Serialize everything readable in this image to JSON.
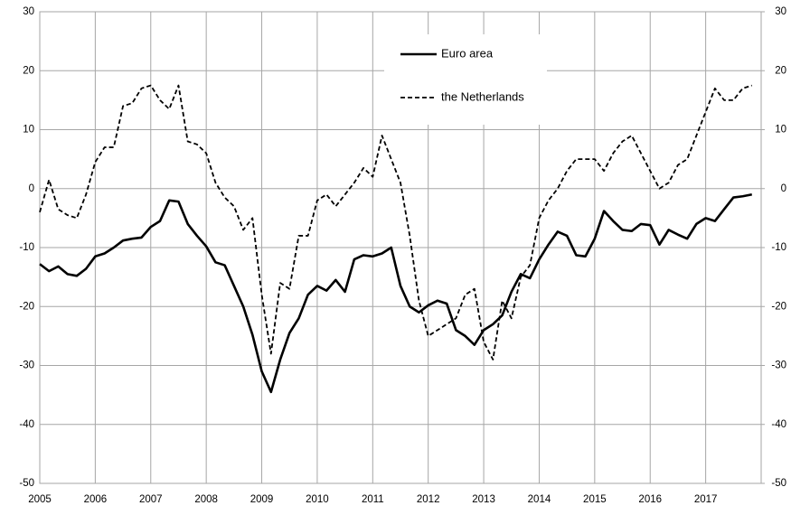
{
  "chart_data": {
    "type": "line",
    "x": [
      2005,
      2005.167,
      2005.333,
      2005.5,
      2005.667,
      2005.833,
      2006,
      2006.167,
      2006.333,
      2006.5,
      2006.667,
      2006.833,
      2007,
      2007.167,
      2007.333,
      2007.5,
      2007.667,
      2007.833,
      2008,
      2008.167,
      2008.333,
      2008.5,
      2008.667,
      2008.833,
      2009,
      2009.167,
      2009.333,
      2009.5,
      2009.667,
      2009.833,
      2010,
      2010.167,
      2010.333,
      2010.5,
      2010.667,
      2010.833,
      2011,
      2011.167,
      2011.333,
      2011.5,
      2011.667,
      2011.833,
      2012,
      2012.167,
      2012.333,
      2012.5,
      2012.667,
      2012.833,
      2013,
      2013.167,
      2013.333,
      2013.5,
      2013.667,
      2013.833,
      2014,
      2014.167,
      2014.333,
      2014.5,
      2014.667,
      2014.833,
      2015,
      2015.167,
      2015.333,
      2015.5,
      2015.667,
      2015.833,
      2016,
      2016.167,
      2016.333,
      2016.5,
      2016.667,
      2016.833,
      2017,
      2017.167,
      2017.333,
      2017.5,
      2017.667,
      2017.833
    ],
    "series": [
      {
        "name": "Euro area",
        "color": "#000000",
        "dash": false,
        "values": [
          -12.8,
          -14,
          -13.2,
          -14.5,
          -14.8,
          -13.6,
          -11.5,
          -11,
          -10,
          -8.8,
          -8.5,
          -8.3,
          -6.5,
          -5.5,
          -2,
          -2.2,
          -6,
          -8,
          -9.8,
          -12.5,
          -13,
          -16.5,
          -20,
          -24.8,
          -31,
          -34.5,
          -29,
          -24.5,
          -22,
          -18,
          -16.5,
          -17.3,
          -15.5,
          -17.5,
          -12,
          -11.3,
          -11.5,
          -11,
          -10,
          -16.5,
          -20,
          -21,
          -19.8,
          -19,
          -19.5,
          -24,
          -25,
          -26.5,
          -24,
          -23,
          -21.5,
          -17.5,
          -14.5,
          -15.2,
          -12,
          -9.5,
          -7.3,
          -8,
          -11.3,
          -11.5,
          -8.5,
          -3.8,
          -5.5,
          -7,
          -7.2,
          -6,
          -6.2,
          -9.5,
          -7,
          -7.8,
          -8.5,
          -6,
          -5,
          -5.5,
          -3.5,
          -1.5,
          -1.3,
          -1
        ]
      },
      {
        "name": "the Netherlands",
        "color": "#000000",
        "dash": true,
        "values": [
          -4,
          1.5,
          -3.5,
          -4.5,
          -5,
          -1,
          4.5,
          7,
          7,
          14,
          14.5,
          17,
          17.5,
          15,
          13.5,
          17.5,
          8,
          7.5,
          6,
          1,
          -1.5,
          -3,
          -7,
          -5,
          -18,
          -28,
          -16,
          -17,
          -8,
          -8,
          -2,
          -1,
          -3,
          -1,
          1,
          3.5,
          2,
          9,
          5,
          1,
          -8,
          -19,
          -25,
          -24,
          -23,
          -22,
          -18,
          -17,
          -26,
          -29,
          -19,
          -22,
          -15,
          -13,
          -5,
          -2,
          0,
          3,
          5,
          5,
          5,
          3,
          6,
          8,
          9,
          6,
          3,
          0,
          1,
          4,
          5,
          9,
          13,
          17,
          15,
          15,
          17,
          17.5
        ]
      }
    ],
    "xlim": [
      2005,
      2018
    ],
    "xticks": [
      2005,
      2006,
      2007,
      2008,
      2009,
      2010,
      2011,
      2012,
      2013,
      2014,
      2015,
      2016,
      2017
    ],
    "ylim": [
      -50,
      30
    ],
    "yticks": [
      -50,
      -40,
      -30,
      -20,
      -10,
      0,
      10,
      20,
      30
    ],
    "y2lim": [
      -50,
      30
    ],
    "y2ticks": [
      -50,
      -40,
      -30,
      -20,
      -10,
      0,
      10,
      20,
      30
    ],
    "grid": true
  }
}
